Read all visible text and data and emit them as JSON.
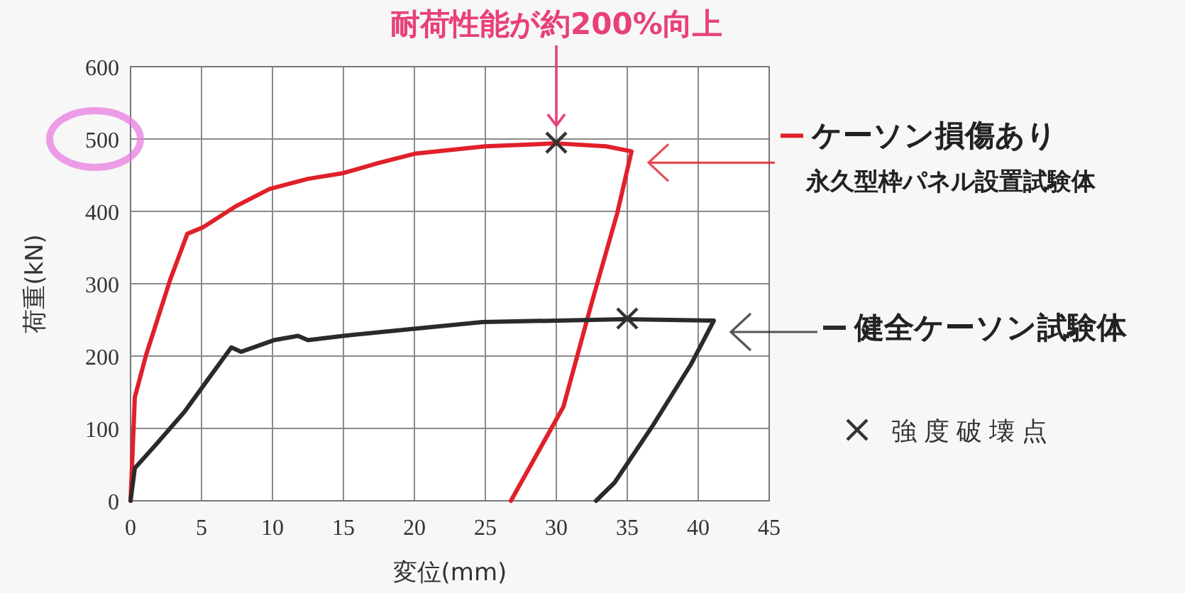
{
  "chart_data": {
    "type": "line",
    "xlabel": "変位(mm)",
    "ylabel": "荷重(kN)",
    "xlim": [
      0,
      45
    ],
    "ylim": [
      0,
      600
    ],
    "xticks": [
      0,
      5,
      10,
      15,
      20,
      25,
      30,
      35,
      40,
      45
    ],
    "yticks": [
      0,
      100,
      200,
      300,
      400,
      500,
      600
    ],
    "grid": true,
    "legend": "right",
    "line_style": "solid",
    "annotations": [
      "耐荷性能が約200%向上",
      "永久型枠パネル設置試験体"
    ],
    "series": [
      {
        "name": "ケーソン損傷あり",
        "color": "#e0202a",
        "x": [
          0,
          0.3,
          1.1,
          2.8,
          4,
          5.1,
          7.5,
          9.8,
          12.5,
          15,
          17.5,
          20.1,
          25,
          30,
          33.5,
          35.3,
          34.3,
          32.5,
          30.5,
          26.8
        ],
        "values": [
          0,
          143,
          202,
          306,
          369,
          378,
          408,
          431,
          445,
          453,
          467,
          480,
          490,
          494,
          490,
          483,
          398,
          274,
          130,
          0
        ]
      },
      {
        "name": "健全ケーソン試験体",
        "color": "#2a2a2a",
        "x": [
          0,
          0.3,
          1.8,
          3.8,
          5.5,
          7.1,
          7.8,
          10.1,
          11.8,
          12.5,
          15,
          20.1,
          24.8,
          34.8,
          41.1,
          39.5,
          36.8,
          34.1,
          32.8
        ],
        "values": [
          0,
          45,
          78,
          123,
          169,
          212,
          206,
          222,
          228,
          222,
          228,
          238,
          247,
          251,
          249,
          189,
          104,
          25,
          0
        ]
      },
      {
        "name": "強度破壊点",
        "color": "#333333",
        "type": "scatter",
        "marker": "cross",
        "x": [
          30,
          35
        ],
        "values": [
          495,
          252
        ]
      }
    ]
  }
}
